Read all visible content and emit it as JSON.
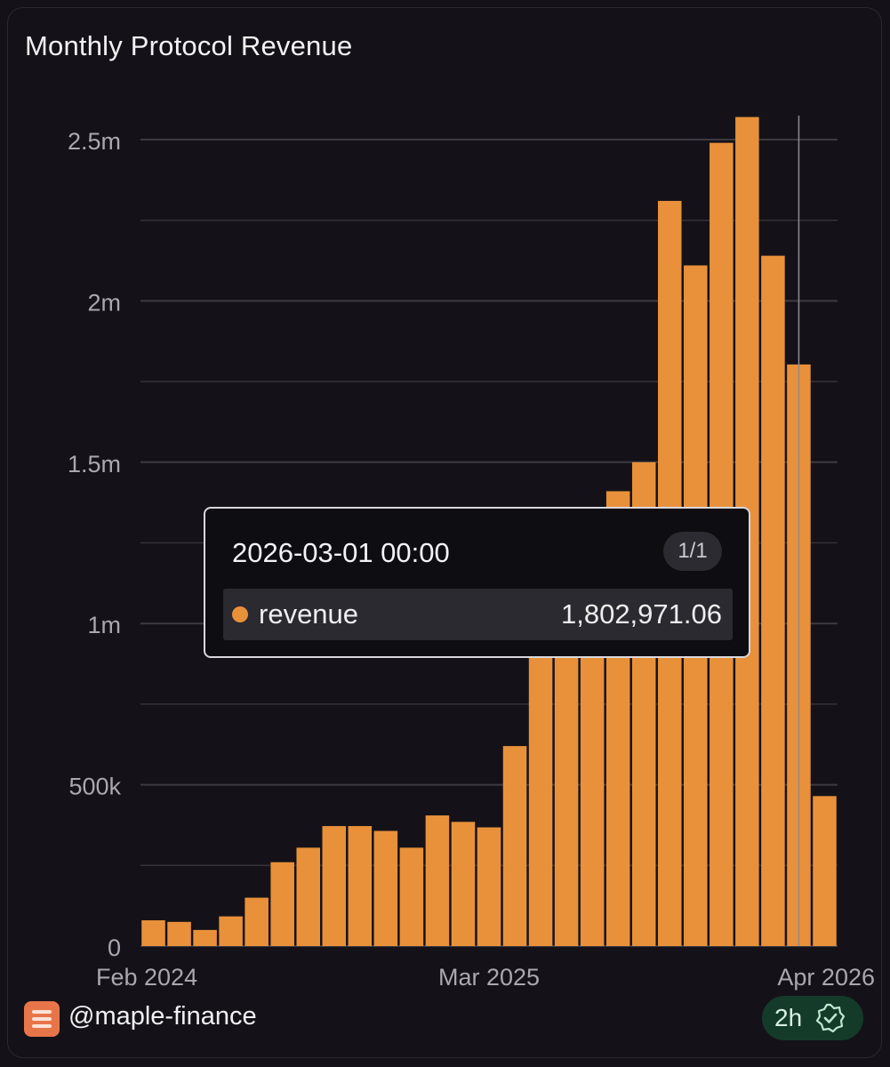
{
  "chart_data": {
    "type": "bar",
    "title": "Monthly Protocol Revenue",
    "y_ticks": [
      "0",
      "500k",
      "1m",
      "1.5m",
      "2m",
      "2.5m"
    ],
    "x_ticks": [
      "Feb 2024",
      "Mar 2025",
      "Apr 2026"
    ],
    "ylim": [
      0,
      2600000
    ],
    "grid": true,
    "color": "#e8913a",
    "categories": [
      "2024-02",
      "2024-03",
      "2024-04",
      "2024-05",
      "2024-06",
      "2024-07",
      "2024-08",
      "2024-09",
      "2024-10",
      "2024-11",
      "2024-12",
      "2025-01",
      "2025-02",
      "2025-03",
      "2025-04",
      "2025-05",
      "2025-06",
      "2025-07",
      "2025-08",
      "2025-09",
      "2025-10",
      "2025-11",
      "2025-12",
      "2026-01",
      "2026-02",
      "2026-03",
      "2026-04"
    ],
    "series": [
      {
        "name": "revenue",
        "values": [
          80000,
          75000,
          50000,
          92000,
          150000,
          260000,
          305000,
          372000,
          372000,
          357000,
          305000,
          405000,
          385000,
          368000,
          620000,
          1000000,
          1000000,
          1000000,
          1410000,
          1500000,
          2310000,
          2110000,
          2490000,
          2570000,
          2140000,
          1802971.06,
          465000
        ]
      }
    ]
  },
  "tooltip": {
    "date": "2026-03-01 00:00",
    "page": "1/1",
    "series": "revenue",
    "value": "1,802,971.06"
  },
  "footer": {
    "user": "@maple-finance",
    "freshness": "2h",
    "verified_icon": "check-badge-icon"
  }
}
